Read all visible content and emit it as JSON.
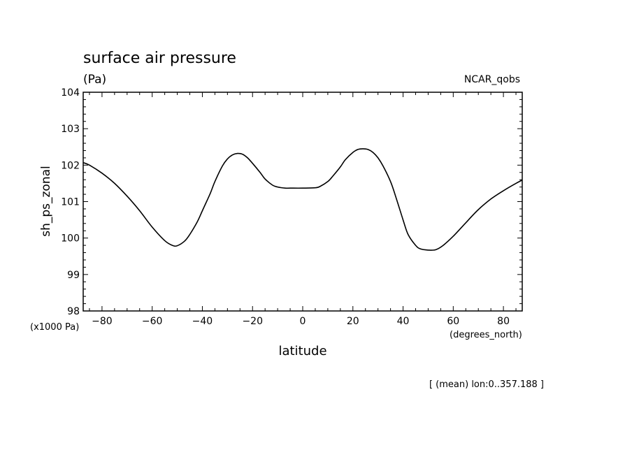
{
  "chart_data": {
    "type": "line",
    "title": "surface air pressure",
    "subtitle": "(Pa)",
    "source_label": "NCAR_qobs",
    "ylabel": "sh_ps_zonal",
    "xlabel": "latitude",
    "y_unit_label": "(x1000 Pa)",
    "x_unit_label": "(degrees_north)",
    "footnote": "[ (mean) lon:0..357.188 ]",
    "xlim": [
      -87.5,
      87.5
    ],
    "ylim": [
      98,
      104
    ],
    "x_ticks": [
      -80,
      -60,
      -40,
      -20,
      0,
      20,
      40,
      60,
      80
    ],
    "x_tick_labels": [
      "−80",
      "−60",
      "−40",
      "−20",
      "0",
      "20",
      "40",
      "60",
      "80"
    ],
    "y_ticks": [
      98,
      99,
      100,
      101,
      102,
      103,
      104
    ],
    "y_tick_labels": [
      "98",
      "99",
      "100",
      "101",
      "102",
      "103",
      "104"
    ],
    "grid": false,
    "line_color": "#000000",
    "series": [
      {
        "x": [
          -87.5,
          -85,
          -80,
          -75,
          -70,
          -65,
          -60,
          -55,
          -52,
          -50,
          -47,
          -45,
          -42,
          -40,
          -37,
          -35,
          -32,
          -30,
          -28,
          -26,
          -24,
          -22,
          -20,
          -17,
          -15,
          -12,
          -10,
          -7,
          -5,
          0,
          5,
          7,
          10,
          12,
          15,
          17,
          20,
          22,
          24,
          26,
          28,
          30,
          32,
          35,
          37,
          40,
          42,
          45,
          47,
          50,
          53,
          56,
          60,
          65,
          70,
          75,
          80,
          85,
          87.5
        ],
        "y": [
          102.07,
          102.0,
          101.78,
          101.5,
          101.15,
          100.75,
          100.3,
          99.93,
          99.8,
          99.79,
          99.92,
          100.1,
          100.45,
          100.75,
          101.2,
          101.55,
          101.98,
          102.17,
          102.28,
          102.32,
          102.3,
          102.2,
          102.05,
          101.8,
          101.62,
          101.45,
          101.4,
          101.37,
          101.37,
          101.37,
          101.38,
          101.42,
          101.55,
          101.7,
          101.95,
          102.15,
          102.35,
          102.43,
          102.45,
          102.43,
          102.35,
          102.2,
          101.98,
          101.55,
          101.15,
          100.5,
          100.1,
          99.8,
          99.7,
          99.67,
          99.68,
          99.8,
          100.05,
          100.42,
          100.78,
          101.07,
          101.3,
          101.5,
          101.59
        ]
      }
    ]
  }
}
